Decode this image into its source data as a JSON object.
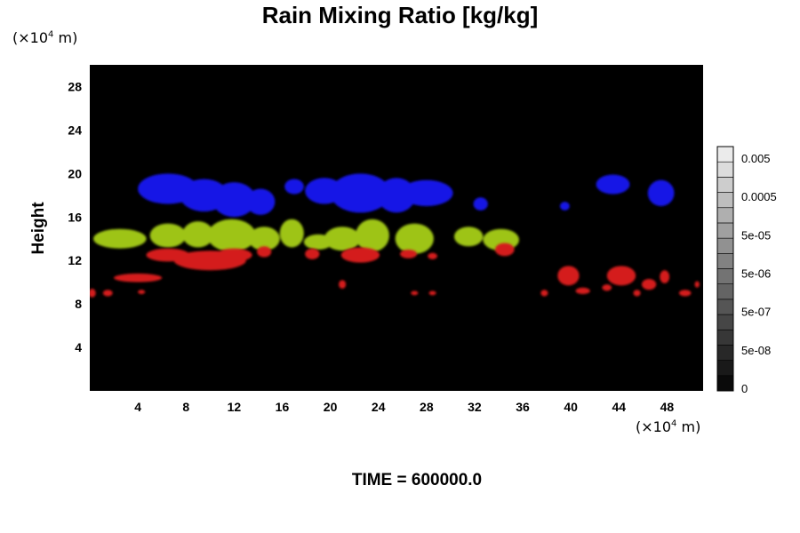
{
  "footer": {
    "time_label": "TIME = 600000.0"
  },
  "chart_data": {
    "type": "heatmap",
    "title": "Rain Mixing Ratio [kg/kg]",
    "ylabel": "Height",
    "xlabel": "",
    "x_unit_prefix": "(×10",
    "x_unit_exp": "4",
    "x_unit_suffix": " m)",
    "y_unit_prefix": "(×10",
    "y_unit_exp": "4",
    "y_unit_suffix": " m)",
    "xlim": [
      0,
      51
    ],
    "ylim": [
      0,
      30
    ],
    "x_ticks": [
      4,
      8,
      12,
      16,
      20,
      24,
      28,
      32,
      36,
      40,
      44,
      48
    ],
    "y_ticks": [
      4,
      8,
      12,
      16,
      20,
      24,
      28
    ],
    "background_color": "#000000",
    "colorbar": {
      "labels": [
        "0.005",
        "0.0005",
        "5e-05",
        "5e-06",
        "5e-07",
        "5e-08",
        "0"
      ],
      "levels": 16
    },
    "series": [
      {
        "color": "#1515e6",
        "regions": [
          {
            "x": 6.5,
            "y": 18.6,
            "rx": 2.5,
            "ry": 1.4
          },
          {
            "x": 9.5,
            "y": 18.0,
            "rx": 2.0,
            "ry": 1.5
          },
          {
            "x": 12.0,
            "y": 17.6,
            "rx": 1.8,
            "ry": 1.6
          },
          {
            "x": 14.2,
            "y": 17.4,
            "rx": 1.2,
            "ry": 1.2
          },
          {
            "x": 17.0,
            "y": 18.8,
            "rx": 0.8,
            "ry": 0.7
          },
          {
            "x": 19.5,
            "y": 18.4,
            "rx": 1.6,
            "ry": 1.2
          },
          {
            "x": 22.5,
            "y": 18.2,
            "rx": 2.5,
            "ry": 1.8
          },
          {
            "x": 25.5,
            "y": 18.0,
            "rx": 1.6,
            "ry": 1.6
          },
          {
            "x": 28.0,
            "y": 18.2,
            "rx": 2.2,
            "ry": 1.2
          },
          {
            "x": 32.5,
            "y": 17.2,
            "rx": 0.6,
            "ry": 0.6
          },
          {
            "x": 39.5,
            "y": 17.0,
            "rx": 0.4,
            "ry": 0.4
          },
          {
            "x": 43.5,
            "y": 19.0,
            "rx": 1.4,
            "ry": 0.9
          },
          {
            "x": 47.5,
            "y": 18.2,
            "rx": 1.1,
            "ry": 1.2
          }
        ]
      },
      {
        "color": "#9ec415",
        "regions": [
          {
            "x": 2.5,
            "y": 14.0,
            "rx": 2.2,
            "ry": 0.9
          },
          {
            "x": 6.5,
            "y": 14.3,
            "rx": 1.5,
            "ry": 1.1
          },
          {
            "x": 9.0,
            "y": 14.4,
            "rx": 1.3,
            "ry": 1.2
          },
          {
            "x": 11.8,
            "y": 14.3,
            "rx": 2.0,
            "ry": 1.5
          },
          {
            "x": 14.5,
            "y": 14.0,
            "rx": 1.3,
            "ry": 1.1
          },
          {
            "x": 16.8,
            "y": 14.5,
            "rx": 1.0,
            "ry": 1.3
          },
          {
            "x": 19.0,
            "y": 13.7,
            "rx": 1.2,
            "ry": 0.7
          },
          {
            "x": 21.0,
            "y": 14.0,
            "rx": 1.5,
            "ry": 1.1
          },
          {
            "x": 23.5,
            "y": 14.3,
            "rx": 1.4,
            "ry": 1.5
          },
          {
            "x": 27.0,
            "y": 14.0,
            "rx": 1.6,
            "ry": 1.4
          },
          {
            "x": 31.5,
            "y": 14.2,
            "rx": 1.2,
            "ry": 0.9
          },
          {
            "x": 34.2,
            "y": 13.9,
            "rx": 1.5,
            "ry": 1.0
          }
        ]
      },
      {
        "color": "#d41a1a",
        "regions": [
          {
            "x": 0.2,
            "y": 9.0,
            "rx": 0.3,
            "ry": 0.4
          },
          {
            "x": 1.5,
            "y": 9.0,
            "rx": 0.4,
            "ry": 0.3
          },
          {
            "x": 4.0,
            "y": 10.4,
            "rx": 2.0,
            "ry": 0.4
          },
          {
            "x": 4.3,
            "y": 9.1,
            "rx": 0.3,
            "ry": 0.2
          },
          {
            "x": 6.5,
            "y": 12.5,
            "rx": 1.8,
            "ry": 0.6
          },
          {
            "x": 10.0,
            "y": 12.0,
            "rx": 3.0,
            "ry": 0.9
          },
          {
            "x": 12.0,
            "y": 12.5,
            "rx": 1.5,
            "ry": 0.6
          },
          {
            "x": 14.5,
            "y": 12.8,
            "rx": 0.6,
            "ry": 0.5
          },
          {
            "x": 18.5,
            "y": 12.6,
            "rx": 0.6,
            "ry": 0.5
          },
          {
            "x": 21.0,
            "y": 9.8,
            "rx": 0.3,
            "ry": 0.4
          },
          {
            "x": 22.5,
            "y": 12.5,
            "rx": 1.6,
            "ry": 0.7
          },
          {
            "x": 26.5,
            "y": 12.6,
            "rx": 0.7,
            "ry": 0.4
          },
          {
            "x": 28.5,
            "y": 12.4,
            "rx": 0.4,
            "ry": 0.3
          },
          {
            "x": 34.5,
            "y": 13.0,
            "rx": 0.8,
            "ry": 0.6
          },
          {
            "x": 27.0,
            "y": 9.0,
            "rx": 0.3,
            "ry": 0.2
          },
          {
            "x": 28.5,
            "y": 9.0,
            "rx": 0.3,
            "ry": 0.2
          },
          {
            "x": 37.8,
            "y": 9.0,
            "rx": 0.3,
            "ry": 0.3
          },
          {
            "x": 39.8,
            "y": 10.6,
            "rx": 0.9,
            "ry": 0.9
          },
          {
            "x": 41.0,
            "y": 9.2,
            "rx": 0.6,
            "ry": 0.3
          },
          {
            "x": 43.0,
            "y": 9.5,
            "rx": 0.4,
            "ry": 0.3
          },
          {
            "x": 44.2,
            "y": 10.6,
            "rx": 1.2,
            "ry": 0.9
          },
          {
            "x": 45.5,
            "y": 9.0,
            "rx": 0.3,
            "ry": 0.3
          },
          {
            "x": 46.5,
            "y": 9.8,
            "rx": 0.6,
            "ry": 0.5
          },
          {
            "x": 47.8,
            "y": 10.5,
            "rx": 0.4,
            "ry": 0.6
          },
          {
            "x": 49.5,
            "y": 9.0,
            "rx": 0.5,
            "ry": 0.3
          },
          {
            "x": 50.5,
            "y": 9.8,
            "rx": 0.2,
            "ry": 0.3
          }
        ]
      }
    ]
  }
}
